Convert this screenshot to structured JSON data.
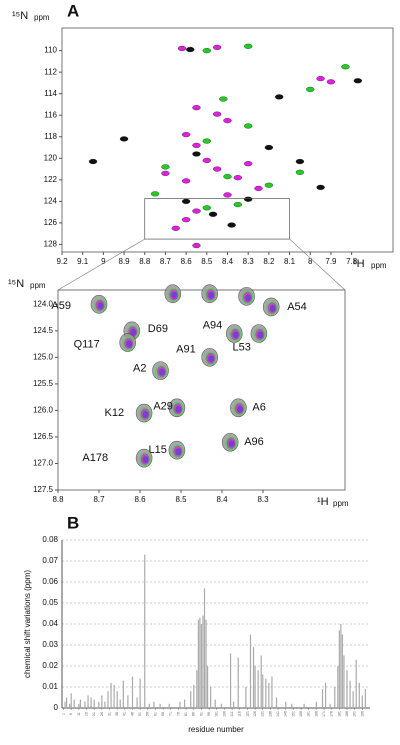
{
  "chart_data": [
    {
      "type": "scatter",
      "panel": "A",
      "y_label": "¹⁵N",
      "y_unit": "ppm",
      "x_label": "¹H",
      "x_unit": "ppm",
      "xlim": [
        9.2,
        7.6
      ],
      "ylim": [
        107.9,
        128.7
      ],
      "xticks": [
        9.2,
        9.1,
        9.0,
        8.9,
        8.8,
        8.7,
        8.6,
        8.5,
        8.4,
        8.3,
        8.2,
        8.1,
        8.0,
        7.9,
        7.8
      ],
      "yticks": [
        110,
        112,
        114,
        116,
        118,
        120,
        122,
        124,
        126,
        128
      ],
      "series": [
        {
          "color": "#e020e0",
          "x": [
            8.62,
            8.45,
            7.95,
            7.9,
            8.55,
            8.45,
            8.4,
            8.6,
            8.55,
            8.5,
            8.45,
            8.35,
            8.6,
            8.7,
            8.3,
            8.25,
            8.4,
            8.55,
            8.6,
            8.55,
            8.65
          ],
          "values": [
            109.8,
            109.7,
            112.6,
            112.9,
            115.3,
            115.9,
            116.5,
            117.8,
            118.8,
            120.2,
            121,
            121.8,
            122.1,
            121.4,
            120.5,
            122.8,
            123.4,
            124.9,
            125.7,
            128.1,
            126.5
          ]
        },
        {
          "color": "#22cc22",
          "x": [
            8.5,
            8.3,
            7.83,
            8.0,
            8.42,
            8.3,
            8.5,
            8.7,
            8.4,
            8.2,
            8.05,
            8.75,
            8.35,
            8.5
          ],
          "values": [
            110,
            109.6,
            111.5,
            113.6,
            114.5,
            117,
            118.4,
            120.8,
            121.7,
            122.5,
            121.3,
            123.3,
            124.3,
            124.6
          ]
        },
        {
          "color": "#111111",
          "x": [
            8.58,
            9.05,
            8.9,
            8.55,
            8.2,
            8.05,
            7.95,
            8.3,
            8.6,
            8.47,
            8.38,
            8.15,
            7.77
          ],
          "values": [
            109.9,
            120.3,
            118.2,
            119.6,
            119.0,
            120.3,
            122.7,
            123.8,
            124,
            125.2,
            126.2,
            114.3,
            112.8
          ]
        }
      ]
    },
    {
      "type": "scatter",
      "y_label": "¹⁵N",
      "y_unit": "ppm",
      "x_label": "¹H",
      "x_unit": "ppm",
      "xlim": [
        8.8,
        8.1
      ],
      "ylim": [
        123.73,
        127.5
      ],
      "xticks": [
        8.8,
        8.7,
        8.6,
        8.5,
        8.4,
        8.3
      ],
      "yticks": [
        {
          "value": 124,
          "label": "124.0"
        },
        124.5,
        {
          "value": 125,
          "label": "125.0"
        },
        125.5,
        {
          "value": 126,
          "label": "126.0"
        },
        126.5,
        {
          "value": 127,
          "label": "127.0"
        },
        127.5
      ],
      "series": [
        {
          "color": "#7a3fd0",
          "x": [
            8.7,
            8.62,
            8.63,
            8.43,
            8.37,
            8.31,
            8.28,
            8.55,
            8.51,
            8.59,
            8.36,
            8.38,
            8.51,
            8.59,
            8.52,
            8.43,
            8.34
          ],
          "values": [
            124.0,
            124.5,
            124.72,
            125.0,
            124.55,
            124.55,
            124.05,
            125.25,
            125.95,
            126.05,
            125.95,
            126.6,
            126.75,
            126.9,
            123.8,
            123.8,
            123.85
          ],
          "labels": [
            "A59",
            "D69",
            "Q117",
            "A91",
            "A94",
            "L53",
            "A54",
            "A2",
            "A29",
            "K12",
            "A6",
            "A96",
            "L15",
            "A178",
            null,
            null,
            null
          ]
        }
      ]
    },
    {
      "type": "bar",
      "panel": "B",
      "y_label": "chemical shift variations (ppm)",
      "x_label": "residue number",
      "color": "#aaaaaa",
      "grid": true,
      "xlim": [
        0,
        201
      ],
      "ylim": [
        0,
        0.08
      ],
      "yticks": [
        0,
        0.01,
        0.02,
        0.03,
        0.04,
        0.05,
        0.06,
        0.07,
        0.08
      ],
      "xticks": [
        1,
        6,
        11,
        16,
        21,
        26,
        31,
        36,
        41,
        46,
        51,
        56,
        61,
        66,
        71,
        76,
        81,
        86,
        91,
        96,
        101,
        106,
        111,
        116,
        121,
        126,
        131,
        136,
        141,
        146,
        151,
        156,
        161,
        166,
        171,
        176,
        181,
        186,
        191,
        196
      ],
      "x": [
        2,
        3,
        5,
        6,
        8,
        11,
        12,
        15,
        17,
        19,
        21,
        24,
        26,
        28,
        30,
        32,
        34,
        36,
        38,
        40,
        43,
        46,
        49,
        51,
        54,
        57,
        60,
        64,
        70,
        77,
        80,
        84,
        86,
        88,
        89,
        90,
        91,
        92,
        93,
        94,
        95,
        97,
        100,
        104,
        110,
        112,
        115,
        120,
        123,
        125,
        126,
        128,
        130,
        131,
        133,
        135,
        137,
        140,
        146,
        150,
        158,
        166,
        170,
        172,
        175,
        178,
        180,
        181,
        182,
        183,
        184,
        186,
        188,
        190,
        192,
        194,
        196,
        198
      ],
      "values": [
        0.003,
        0.005,
        0.002,
        0.007,
        0.004,
        0.002,
        0.004,
        0.003,
        0.006,
        0.005,
        0.004,
        0.003,
        0.006,
        0.003,
        0.008,
        0.012,
        0.011,
        0.008,
        0.004,
        0.013,
        0.006,
        0.015,
        0.005,
        0.014,
        0.073,
        0.002,
        0.003,
        0.002,
        0.002,
        0.003,
        0.004,
        0.008,
        0.011,
        0.018,
        0.042,
        0.043,
        0.04,
        0.044,
        0.057,
        0.042,
        0.02,
        0.01,
        0.004,
        0.002,
        0.026,
        0.003,
        0.024,
        0.01,
        0.035,
        0.029,
        0.02,
        0.018,
        0.025,
        0.016,
        0.014,
        0.012,
        0.015,
        0.005,
        0.003,
        0.002,
        0.002,
        0.003,
        0.009,
        0.012,
        0.002,
        0.01,
        0.02,
        0.037,
        0.04,
        0.035,
        0.025,
        0.018,
        0.013,
        0.008,
        0.023,
        0.012,
        0.006,
        0.009
      ]
    }
  ]
}
